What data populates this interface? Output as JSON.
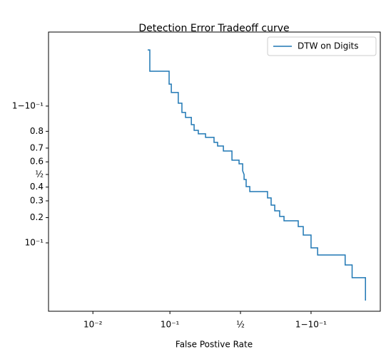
{
  "chart_data": {
    "type": "line",
    "title": "Detection Error Tradeoff curve",
    "xlabel": "False Postive Rate",
    "xscale": "logit",
    "yscale": "logit",
    "xlim": [
      0.00253,
      0.9873
    ],
    "ylim": [
      0.0122,
      0.9898
    ],
    "xticks": [
      {
        "value": 0.01,
        "label": "10⁻²"
      },
      {
        "value": 0.1,
        "label": "10⁻¹"
      },
      {
        "value": 0.5,
        "label": "½"
      },
      {
        "value": 0.9,
        "label": "1−10⁻¹"
      }
    ],
    "yticks": [
      {
        "value": 0.1,
        "label": "10⁻¹"
      },
      0.2,
      0.3,
      0.4,
      {
        "value": 0.5,
        "label": "½"
      },
      0.6,
      0.7,
      0.8,
      {
        "value": 0.9,
        "label": "1−10⁻¹"
      }
    ],
    "legend": "upper right",
    "x": [
      0.0527,
      0.0561,
      0.0561,
      0.0978,
      0.0978,
      0.104,
      0.104,
      0.126,
      0.126,
      0.139,
      0.139,
      0.153,
      0.153,
      0.178,
      0.178,
      0.191,
      0.191,
      0.212,
      0.212,
      0.252,
      0.252,
      0.305,
      0.305,
      0.329,
      0.329,
      0.37,
      0.37,
      0.434,
      0.434,
      0.489,
      0.489,
      0.517,
      0.517,
      0.528,
      0.528,
      0.544,
      0.544,
      0.572,
      0.572,
      0.699,
      0.699,
      0.722,
      0.722,
      0.744,
      0.744,
      0.772,
      0.772,
      0.795,
      0.795,
      0.858,
      0.858,
      0.876,
      0.876,
      0.9,
      0.9,
      0.917,
      0.917,
      0.963,
      0.963,
      0.97,
      0.97,
      0.98,
      0.98
    ],
    "series": [
      {
        "name": "DTW on Digits",
        "color": "#1f77b4",
        "values": [
          0.982,
          0.982,
          0.965,
          0.965,
          0.948,
          0.948,
          0.933,
          0.933,
          0.908,
          0.908,
          0.88,
          0.88,
          0.862,
          0.862,
          0.832,
          0.832,
          0.805,
          0.805,
          0.787,
          0.787,
          0.767,
          0.767,
          0.737,
          0.737,
          0.714,
          0.714,
          0.68,
          0.68,
          0.613,
          0.613,
          0.585,
          0.585,
          0.529,
          0.5,
          0.46,
          0.46,
          0.404,
          0.404,
          0.366,
          0.366,
          0.32,
          0.32,
          0.272,
          0.272,
          0.237,
          0.237,
          0.206,
          0.206,
          0.184,
          0.184,
          0.158,
          0.158,
          0.125,
          0.125,
          0.0865,
          0.0865,
          0.07,
          0.07,
          0.0518,
          0.0518,
          0.035,
          0.035,
          0.0171
        ]
      }
    ]
  }
}
